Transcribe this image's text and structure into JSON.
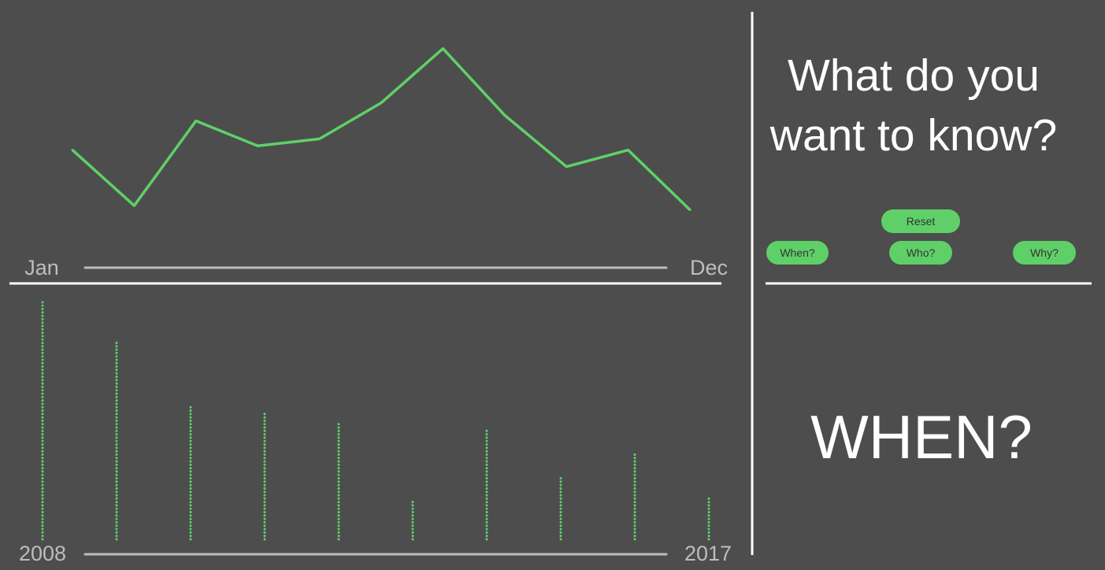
{
  "chart_data": [
    {
      "type": "line",
      "title": "",
      "x_start_label": "Jan",
      "x_end_label": "Dec",
      "x": [
        1,
        2,
        3,
        4,
        5,
        6,
        7,
        8,
        9,
        10,
        11
      ],
      "values": [
        0.79,
        0.39,
        1.0,
        0.82,
        0.87,
        1.13,
        1.52,
        1.04,
        0.67,
        0.79,
        0.36
      ],
      "ylim": [
        0,
        1.55
      ],
      "color": "#5fd068",
      "grid": false,
      "legend": "none"
    },
    {
      "type": "bar",
      "title": "",
      "x_start_label": "2008",
      "x_end_label": "2017",
      "categories": [
        "2008",
        "2009",
        "2010",
        "2011",
        "2012",
        "2013",
        "2014",
        "2015",
        "2016",
        "2017"
      ],
      "values": [
        100,
        83,
        56,
        54,
        49,
        16,
        46,
        26,
        36,
        18
      ],
      "ylim": [
        0,
        100
      ],
      "mark": "dotted-column",
      "color": "#5fd068",
      "grid": false,
      "legend": "none"
    }
  ],
  "panel": {
    "question": "What do you want to know?",
    "answer": "WHEN?"
  },
  "buttons": {
    "reset": "Reset",
    "when": "When?",
    "who": "Who?",
    "why": "Why?"
  },
  "colors": {
    "background": "#4d4d4d",
    "accent": "#5fd068",
    "axis_grey": "#bdbdbd",
    "divider": "#ffffff",
    "button_text": "#333333"
  }
}
